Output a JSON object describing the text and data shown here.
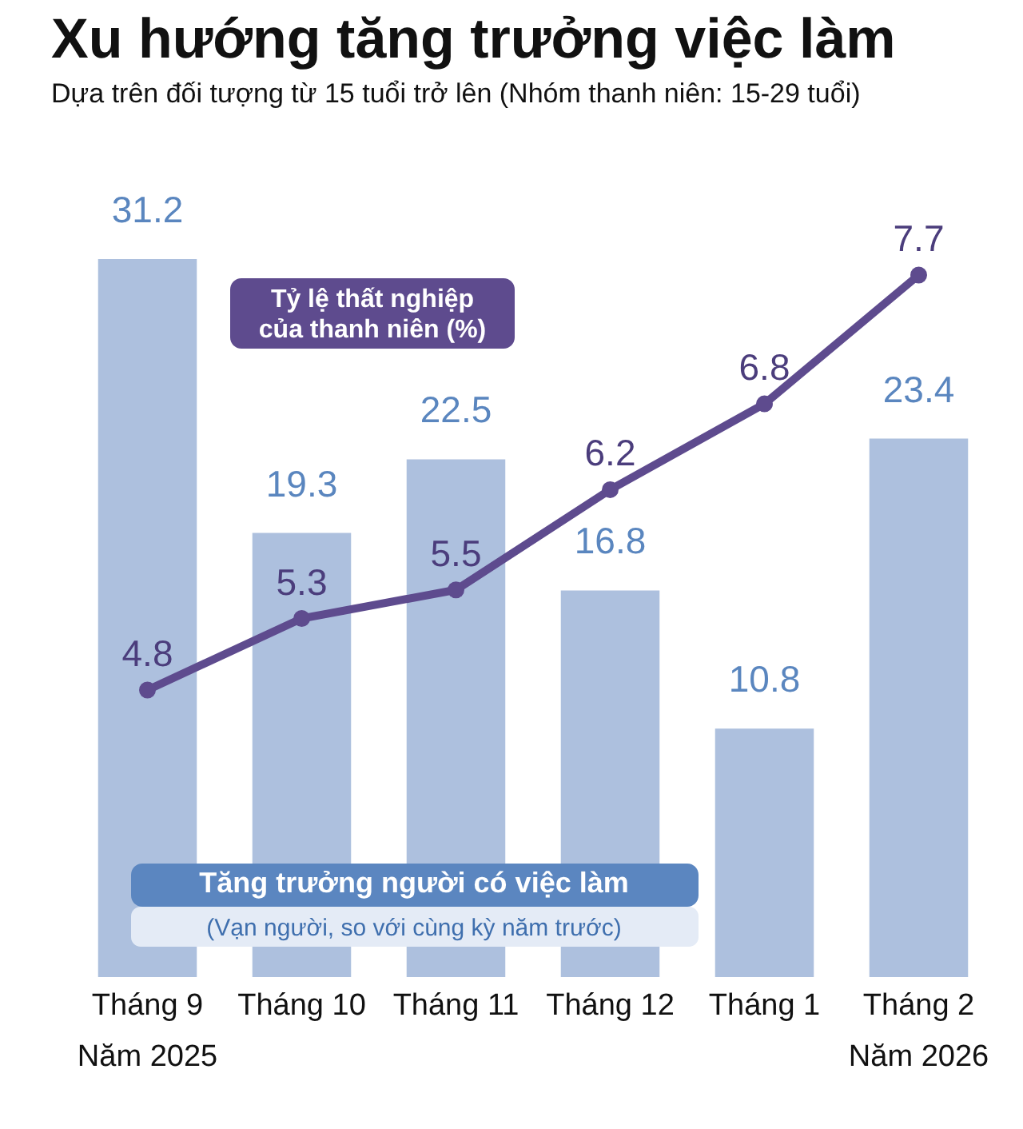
{
  "chart_data": {
    "type": "bar",
    "title": "Xu hướng tăng trưởng việc làm",
    "subtitle": "Dựa trên đối tượng từ 15 tuổi trở lên (Nhóm thanh niên: 15-29 tuổi)",
    "categories": [
      "Tháng 9\nNăm 2025",
      "Tháng 10",
      "Tháng 11",
      "Tháng 12",
      "Tháng 1",
      "Tháng 2\nNăm 2026"
    ],
    "series": [
      {
        "name": "Tăng trưởng người có việc làm",
        "color": "#adc0de",
        "values": [
          31.2,
          19.3,
          22.5,
          16.8,
          10.8,
          23.4
        ]
      },
      {
        "name": "Tỷ lệ thất nghiệp\ncủa thanh niên (%)",
        "type": "line",
        "axis": "y2",
        "color": "#5e4b8e",
        "values": [
          4.8,
          5.3,
          5.5,
          6.2,
          6.8,
          7.7
        ]
      }
    ],
    "data_labels": true,
    "marker": "circle",
    "tick_labels": "x",
    "grid": false,
    "annotations": [
      "(Vạn người, so với cùng kỳ năm trước)"
    ]
  }
}
